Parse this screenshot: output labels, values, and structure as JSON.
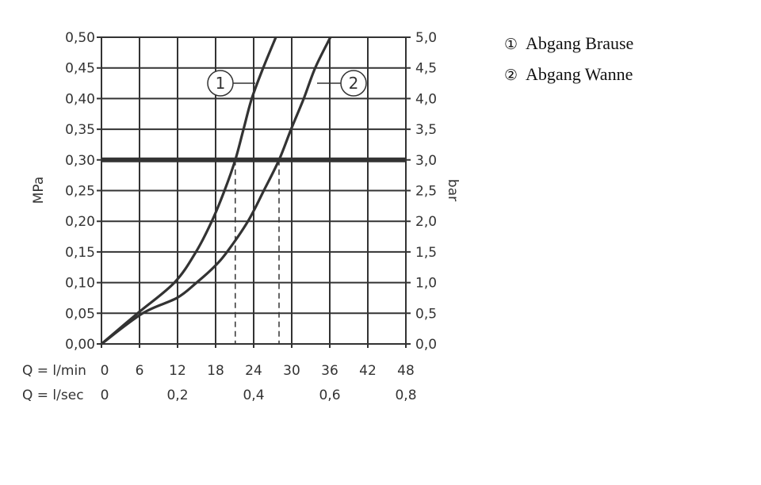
{
  "chart_data": {
    "type": "line",
    "title": "",
    "ylabel": "MPa",
    "ylabel_right": "bar",
    "xlim": [
      0,
      48
    ],
    "ylim": [
      0,
      0.5
    ],
    "y2lim": [
      0,
      5
    ],
    "grid": true,
    "legend_position": "top-right",
    "x_rows": [
      {
        "label": "Q = l/min",
        "ticks": [
          {
            "v": 0,
            "t": "0"
          },
          {
            "v": 6,
            "t": "6"
          },
          {
            "v": 12,
            "t": "12"
          },
          {
            "v": 18,
            "t": "18"
          },
          {
            "v": 24,
            "t": "24"
          },
          {
            "v": 30,
            "t": "30"
          },
          {
            "v": 36,
            "t": "36"
          },
          {
            "v": 42,
            "t": "42"
          },
          {
            "v": 48,
            "t": "48"
          }
        ]
      },
      {
        "label": "Q = l/sec",
        "ticks": [
          {
            "v": 0,
            "t": "0"
          },
          {
            "v": 12,
            "t": "0,2"
          },
          {
            "v": 24,
            "t": "0,4"
          },
          {
            "v": 36,
            "t": "0,6"
          },
          {
            "v": 48,
            "t": "0,8"
          }
        ]
      }
    ],
    "y_ticks": [
      "0,00",
      "0,05",
      "0,10",
      "0,15",
      "0,20",
      "0,25",
      "0,30",
      "0,35",
      "0,40",
      "0,45",
      "0,50"
    ],
    "y2_ticks": [
      "0,0",
      "0,5",
      "1,0",
      "1,5",
      "2,0",
      "2,5",
      "3,0",
      "3,5",
      "4,0",
      "4,5",
      "5,0"
    ],
    "reference_line": {
      "y": 0.3
    },
    "series": [
      {
        "id": "1",
        "name": "Abgang Brause",
        "x": [
          0,
          5.7,
          11.5,
          14.9,
          17.4,
          19.4,
          21.1,
          22.4,
          23.7,
          25.5,
          27.5
        ],
        "y": [
          0,
          0.05,
          0.1,
          0.15,
          0.2,
          0.25,
          0.3,
          0.35,
          0.4,
          0.45,
          0.5
        ],
        "drop_at_ref": 21.1
      },
      {
        "id": "2",
        "name": "Abgang Wanne",
        "x": [
          0,
          6.5,
          11.9,
          15.0,
          17.7,
          19.8,
          23.1,
          25.6,
          28.0,
          29.9,
          31.9,
          33.7,
          36.1
        ],
        "y": [
          0,
          0.05,
          0.075,
          0.1,
          0.125,
          0.15,
          0.2,
          0.25,
          0.3,
          0.35,
          0.4,
          0.45,
          0.5
        ],
        "drop_at_ref": 28.0
      }
    ],
    "colors": {
      "line": "#333333",
      "grid": "#333333"
    }
  },
  "legend": [
    {
      "mark": "①",
      "name": "Abgang Brause"
    },
    {
      "mark": "②",
      "name": "Abgang Wanne"
    }
  ]
}
